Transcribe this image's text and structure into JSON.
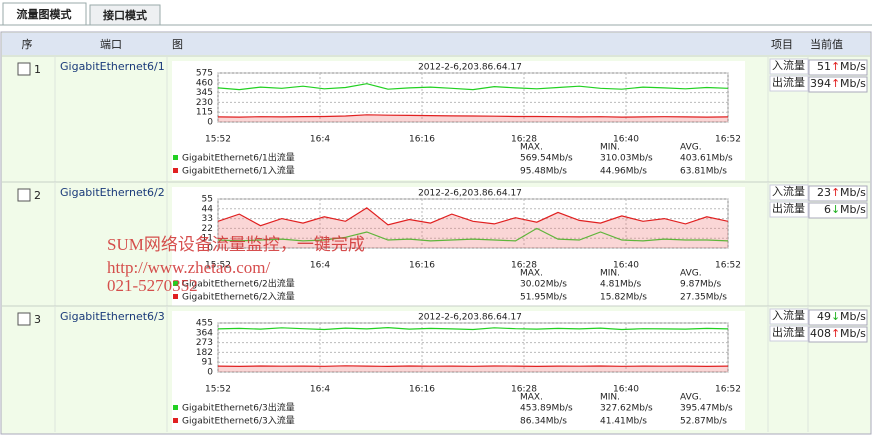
{
  "tabs": [
    "流量图模式",
    "接口模式"
  ],
  "header": [
    "序",
    "端口",
    "图",
    "项目",
    "当前值"
  ],
  "rows": [
    {
      "index": "1",
      "port": "GigabitEthernet6/1",
      "chart": {
        "type": "line",
        "title": "2012-2-6,203.86.64.17",
        "ylim": [
          0,
          575
        ],
        "yticks": [
          0,
          115,
          230,
          345,
          460,
          575
        ],
        "xticks": [
          "15:52",
          "16:4",
          "16:16",
          "16:28",
          "16:40",
          "16:52"
        ],
        "stats_header": [
          "MAX.",
          "MIN.",
          "AVG."
        ],
        "series": [
          {
            "name": "GigabitEthernet6/1出流量",
            "color": "#22d022",
            "values": [
              400,
              380,
              410,
              395,
              420,
              390,
              405,
              450,
              385,
              400,
              410,
              395,
              380,
              415,
              400,
              390,
              405,
              420,
              395,
              385,
              410,
              400,
              390,
              405,
              395
            ],
            "stats": [
              "569.54Mb/s",
              "310.03Mb/s",
              "403.61Mb/s"
            ]
          },
          {
            "name": "GigabitEthernet6/1入流量",
            "color": "#e02020",
            "values": [
              60,
              58,
              62,
              60,
              63,
              65,
              70,
              85,
              80,
              78,
              75,
              72,
              70,
              68,
              65,
              64,
              62,
              60,
              62,
              58,
              60,
              62,
              60,
              58,
              60
            ],
            "stats": [
              "95.48Mb/s",
              "44.96Mb/s",
              "63.81Mb/s"
            ]
          }
        ]
      },
      "items": [
        {
          "label": "入流量",
          "value": "51",
          "trend": "↑",
          "unit": "Mb/s"
        },
        {
          "label": "出流量",
          "value": "394",
          "trend": "↑",
          "unit": "Mb/s"
        }
      ]
    },
    {
      "index": "2",
      "port": "GigabitEthernet6/2",
      "chart": {
        "type": "line",
        "title": "2012-2-6,203.86.64.17",
        "ylim": [
          0,
          55
        ],
        "yticks": [
          0,
          11,
          22,
          33,
          44,
          55
        ],
        "xticks": [
          "15:52",
          "16:4",
          "16:16",
          "16:28",
          "16:40",
          "16:52"
        ],
        "stats_header": [
          "MAX.",
          "MIN.",
          "AVG."
        ],
        "series": [
          {
            "name": "GigabitEthernet6/2出流量",
            "color": "#22d022",
            "values": [
              9,
              8,
              9,
              10,
              8,
              9,
              12,
              18,
              9,
              10,
              8,
              9,
              10,
              9,
              8,
              22,
              10,
              9,
              18,
              9,
              8,
              10,
              9,
              9,
              8
            ],
            "stats": [
              "30.02Mb/s",
              "4.81Mb/s",
              "9.87Mb/s"
            ]
          },
          {
            "name": "GigabitEthernet6/2入流量",
            "color": "#e02020",
            "values": [
              30,
              38,
              25,
              33,
              28,
              35,
              30,
              45,
              26,
              32,
              28,
              38,
              30,
              27,
              34,
              29,
              40,
              31,
              28,
              36,
              30,
              33,
              27,
              35,
              30
            ],
            "stats": [
              "51.95Mb/s",
              "15.82Mb/s",
              "27.35Mb/s"
            ]
          }
        ]
      },
      "items": [
        {
          "label": "入流量",
          "value": "23",
          "trend": "↑",
          "unit": "Mb/s"
        },
        {
          "label": "出流量",
          "value": "6",
          "trend": "↓",
          "unit": "Mb/s"
        }
      ]
    },
    {
      "index": "3",
      "port": "GigabitEthernet6/3",
      "chart": {
        "type": "line",
        "title": "2012-2-6,203.86.64.17",
        "ylim": [
          0,
          455
        ],
        "yticks": [
          0,
          91,
          182,
          273,
          364,
          455
        ],
        "xticks": [
          "15:52",
          "16:4",
          "16:16",
          "16:28",
          "16:40",
          "16:52"
        ],
        "stats_header": [
          "MAX.",
          "MIN.",
          "AVG."
        ],
        "series": [
          {
            "name": "GigabitEthernet6/3出流量",
            "color": "#22d022",
            "values": [
              400,
              405,
              398,
              410,
              402,
              395,
              408,
              400,
              412,
              398,
              405,
              400,
              395,
              410,
              402,
              398,
              405,
              400,
              408,
              395,
              402,
              400,
              398,
              405,
              400
            ],
            "stats": [
              "453.89Mb/s",
              "327.62Mb/s",
              "395.47Mb/s"
            ]
          },
          {
            "name": "GigabitEthernet6/3入流量",
            "color": "#e02020",
            "values": [
              55,
              52,
              56,
              54,
              55,
              53,
              58,
              55,
              52,
              56,
              54,
              55,
              53,
              56,
              55,
              52,
              55,
              54,
              56,
              53,
              55,
              54,
              55,
              52,
              55
            ],
            "stats": [
              "86.34Mb/s",
              "41.41Mb/s",
              "52.87Mb/s"
            ]
          }
        ]
      },
      "items": [
        {
          "label": "入流量",
          "value": "49",
          "trend": "↓",
          "unit": "Mb/s"
        },
        {
          "label": "出流量",
          "value": "408",
          "trend": "↑",
          "unit": "Mb/s"
        }
      ]
    }
  ],
  "watermark": [
    "SUM网络设备流量监控，一键完成",
    "http://www.zhetao.com/",
    "021-5270352"
  ]
}
